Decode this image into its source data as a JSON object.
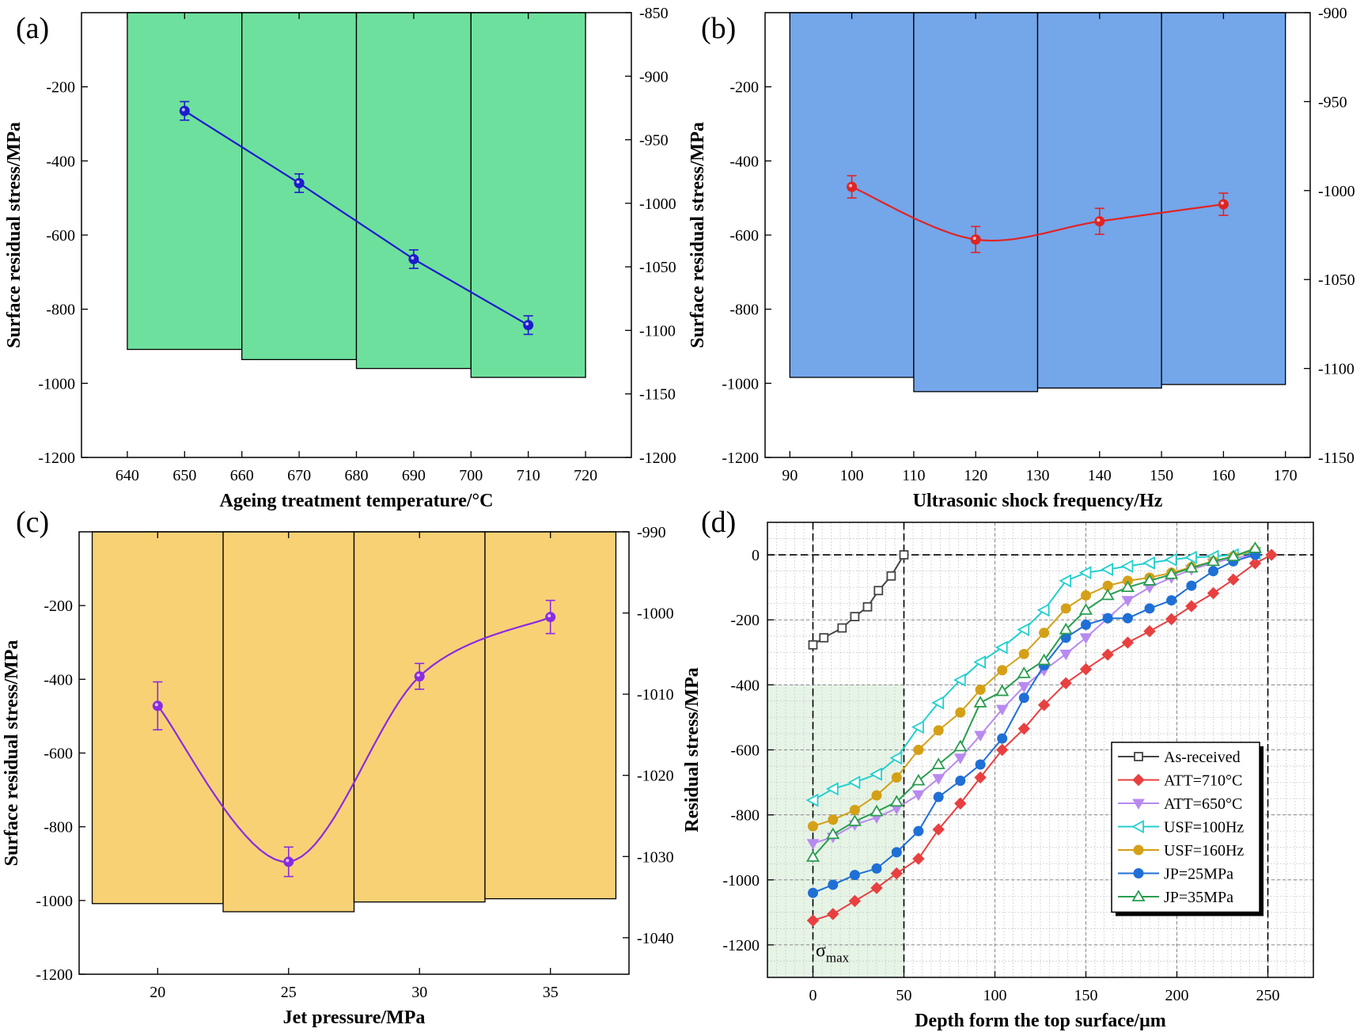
{
  "chart_data": [
    {
      "panel": "(a)",
      "type": "bar+line",
      "xlabel": "Ageing treatment temperature/°C",
      "ylabel": "Surface residual stress/MPa",
      "x_ticks": [
        640,
        650,
        660,
        670,
        680,
        690,
        700,
        710,
        720
      ],
      "y_left_ticks": [
        -1200,
        -1000,
        -800,
        -600,
        -400,
        -200
      ],
      "y_right_ticks": [
        -1200,
        -1150,
        -1100,
        -1050,
        -1000,
        -950,
        -900,
        -850
      ],
      "xlim": [
        632,
        728
      ],
      "ylim_left": [
        -1200,
        0
      ],
      "ylim_right": [
        -1200,
        -850
      ],
      "bar_color": "#6ee09d",
      "line_color": "#1c1ccc",
      "bars": [
        {
          "x": 650,
          "value": -1115
        },
        {
          "x": 670,
          "value": -1123
        },
        {
          "x": 690,
          "value": -1130
        },
        {
          "x": 710,
          "value": -1137
        }
      ],
      "line": [
        {
          "x": 650,
          "y": -265,
          "err": 25
        },
        {
          "x": 670,
          "y": -460,
          "err": 25
        },
        {
          "x": 690,
          "y": -665,
          "err": 25
        },
        {
          "x": 710,
          "y": -843,
          "err": 25
        }
      ],
      "curve": "linear"
    },
    {
      "panel": "(b)",
      "type": "bar+line",
      "xlabel": "Ultrasonic shock frequency/Hz",
      "ylabel": "Surface residual stress/MPa",
      "x_ticks": [
        90,
        100,
        110,
        120,
        130,
        140,
        150,
        160,
        170
      ],
      "y_left_ticks": [
        -1200,
        -1000,
        -800,
        -600,
        -400,
        -200
      ],
      "y_right_ticks": [
        -1150,
        -1100,
        -1050,
        -1000,
        -950,
        -900
      ],
      "xlim": [
        86,
        174
      ],
      "ylim_left": [
        -1200,
        0
      ],
      "ylim_right": [
        -1150,
        -900
      ],
      "bar_color": "#74a6ea",
      "line_color": "#e02424",
      "bars": [
        {
          "x": 100,
          "value": -1105
        },
        {
          "x": 120,
          "value": -1113
        },
        {
          "x": 140,
          "value": -1111
        },
        {
          "x": 160,
          "value": -1109
        }
      ],
      "line": [
        {
          "x": 100,
          "y": -470,
          "err": 30
        },
        {
          "x": 120,
          "y": -612,
          "err": 35
        },
        {
          "x": 140,
          "y": -563,
          "err": 35
        },
        {
          "x": 160,
          "y": -517,
          "err": 30
        }
      ],
      "curve": "smooth"
    },
    {
      "panel": "(c)",
      "type": "bar+line",
      "xlabel": "Jet pressure/MPa",
      "ylabel": "Surface residual stress/MPa",
      "x_ticks": [
        20,
        25,
        30,
        35
      ],
      "y_left_ticks": [
        -1200,
        -1000,
        -800,
        -600,
        -400,
        -200
      ],
      "y_right_ticks": [
        -1040,
        -1030,
        -1020,
        -1010,
        -1000,
        -990
      ],
      "xlim": [
        17,
        38
      ],
      "ylim_left": [
        -1200,
        0
      ],
      "ylim_right": [
        -1044.5,
        -990
      ],
      "bar_color": "#f8d175",
      "line_color": "#8a2be2",
      "bars": [
        {
          "x": 20,
          "value": -1035.8
        },
        {
          "x": 25,
          "value": -1036.8
        },
        {
          "x": 30,
          "value": -1035.6
        },
        {
          "x": 35,
          "value": -1035.2
        }
      ],
      "line": [
        {
          "x": 20,
          "y": -472,
          "err": 65
        },
        {
          "x": 25,
          "y": -895,
          "err": 40
        },
        {
          "x": 30,
          "y": -392,
          "err": 35
        },
        {
          "x": 35,
          "y": -231,
          "err": 45
        }
      ],
      "curve": "smooth"
    },
    {
      "panel": "(d)",
      "type": "line",
      "xlabel": "Depth form the top surface/μm",
      "ylabel": "Residual stress/MPa",
      "x_ticks": [
        0,
        50,
        100,
        150,
        200,
        250
      ],
      "y_ticks": [
        -1200,
        -1000,
        -800,
        -600,
        -400,
        -200,
        0
      ],
      "xlim": [
        -25,
        275
      ],
      "ylim": [
        -1300,
        100
      ],
      "annotation": "σmax",
      "series": [
        {
          "name": "As-received",
          "color": "#444444",
          "marker": "square",
          "x": [
            0,
            6,
            16,
            23,
            30,
            36,
            43,
            50
          ],
          "y": [
            -277,
            -255,
            -225,
            -190,
            -160,
            -110,
            -65,
            0
          ]
        },
        {
          "name": "ATT=710°C",
          "color": "#e84040",
          "marker": "diamond",
          "x": [
            0,
            11,
            23,
            35,
            46,
            58,
            69,
            81,
            92,
            104,
            116,
            127,
            139,
            150,
            162,
            173,
            185,
            197,
            208,
            220,
            231,
            243,
            252
          ],
          "y": [
            -1125,
            -1105,
            -1065,
            -1025,
            -980,
            -935,
            -845,
            -765,
            -685,
            -600,
            -535,
            -462,
            -395,
            -352,
            -307,
            -270,
            -235,
            -198,
            -158,
            -118,
            -76,
            -26,
            0
          ]
        },
        {
          "name": "ATT=650°C",
          "color": "#b88af0",
          "marker": "triangle-down",
          "x": [
            0,
            11,
            23,
            35,
            46,
            58,
            69,
            81,
            92,
            104,
            116,
            127,
            139,
            150,
            162,
            173,
            185,
            197,
            208,
            220,
            231,
            243
          ],
          "y": [
            -888,
            -868,
            -830,
            -808,
            -780,
            -738,
            -688,
            -625,
            -555,
            -475,
            -405,
            -355,
            -305,
            -255,
            -195,
            -140,
            -100,
            -70,
            -45,
            -25,
            -10,
            0
          ]
        },
        {
          "name": "USF=100Hz",
          "color": "#22cfcf",
          "marker": "triangle-left",
          "x": [
            0,
            11,
            23,
            35,
            46,
            58,
            69,
            81,
            92,
            104,
            116,
            127,
            139,
            150,
            162,
            173,
            185,
            197,
            208,
            220,
            231,
            243
          ],
          "y": [
            -755,
            -720,
            -700,
            -675,
            -625,
            -530,
            -455,
            -385,
            -330,
            -285,
            -230,
            -170,
            -80,
            -55,
            -45,
            -35,
            -25,
            -15,
            -8,
            -5,
            0,
            5
          ]
        },
        {
          "name": "USF=160Hz",
          "color": "#d4a017",
          "marker": "circle",
          "x": [
            0,
            11,
            23,
            35,
            46,
            58,
            69,
            81,
            92,
            104,
            116,
            127,
            139,
            150,
            162,
            173,
            185,
            197,
            208,
            220,
            231,
            243
          ],
          "y": [
            -835,
            -815,
            -785,
            -740,
            -685,
            -600,
            -540,
            -485,
            -415,
            -355,
            -305,
            -240,
            -165,
            -125,
            -95,
            -80,
            -70,
            -55,
            -38,
            -20,
            -5,
            15
          ]
        },
        {
          "name": "JP=25MPa",
          "color": "#1f6fd6",
          "marker": "circle",
          "x": [
            0,
            11,
            23,
            35,
            46,
            58,
            69,
            81,
            92,
            104,
            116,
            127,
            139,
            150,
            162,
            173,
            185,
            197,
            208,
            220,
            231,
            243
          ],
          "y": [
            -1040,
            -1015,
            -985,
            -965,
            -915,
            -850,
            -745,
            -695,
            -645,
            -565,
            -440,
            -340,
            -255,
            -215,
            -195,
            -195,
            -165,
            -140,
            -95,
            -50,
            -20,
            0
          ]
        },
        {
          "name": "JP=35MPa",
          "color": "#2a9d50",
          "marker": "triangle-up",
          "x": [
            0,
            11,
            23,
            35,
            46,
            58,
            69,
            81,
            92,
            104,
            116,
            127,
            139,
            150,
            162,
            173,
            185,
            197,
            208,
            220,
            231,
            243
          ],
          "y": [
            -930,
            -860,
            -820,
            -790,
            -760,
            -695,
            -645,
            -590,
            -455,
            -420,
            -365,
            -325,
            -230,
            -170,
            -125,
            -100,
            -80,
            -60,
            -40,
            -20,
            -5,
            20
          ]
        }
      ]
    }
  ]
}
